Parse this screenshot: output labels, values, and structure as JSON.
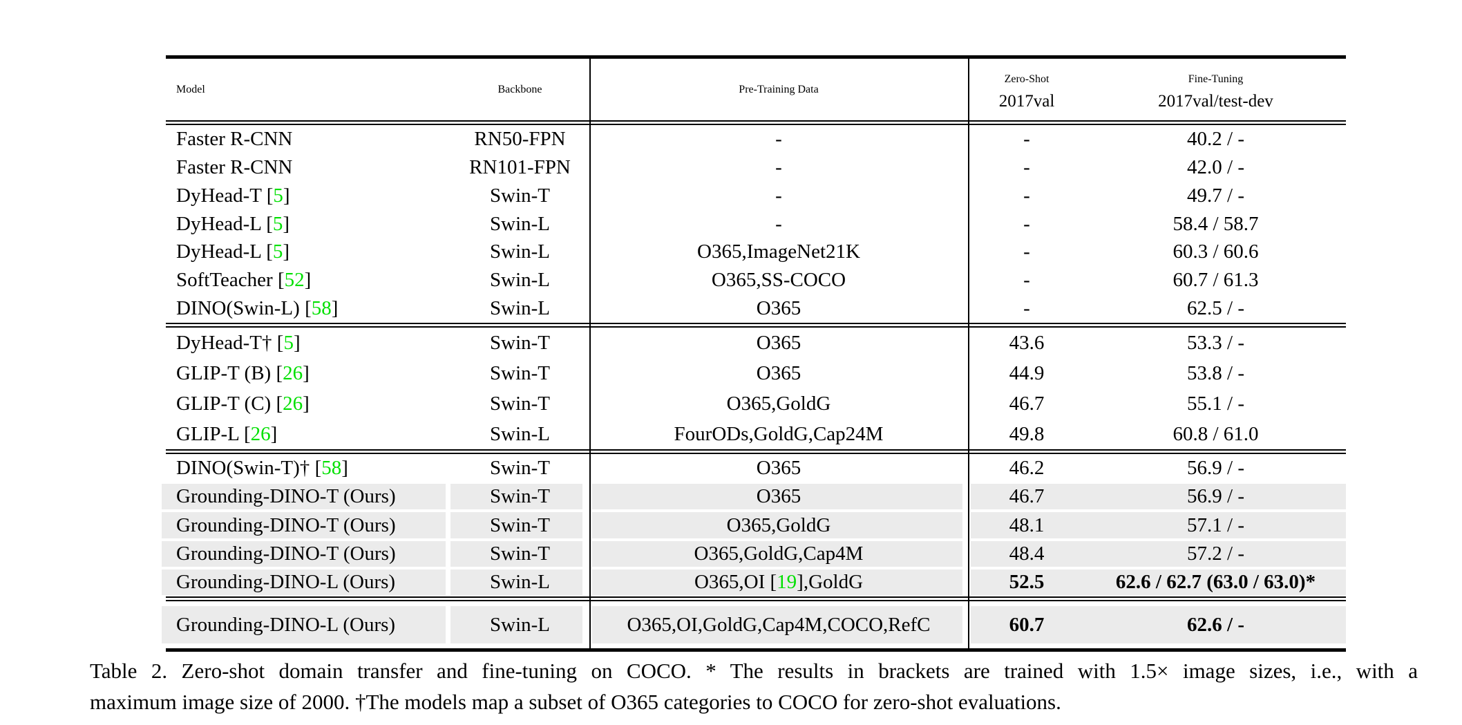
{
  "header": {
    "model": "Model",
    "backbone": "Backbone",
    "pretrain": "Pre-Training Data",
    "zeroshot_title": "Zero-Shot",
    "zeroshot_sub": "2017val",
    "finetune_title": "Fine-Tuning",
    "finetune_sub": "2017val/test-dev"
  },
  "colors": {
    "citation_green": "#00E000",
    "row_highlight": "#EBEBEB",
    "text": "#000000"
  },
  "groups": [
    {
      "rows": [
        {
          "model": "Faster R-CNN",
          "backbone": "RN50-FPN",
          "pretrain": "-",
          "zeroshot": "-",
          "finetune": "40.2 / -"
        },
        {
          "model": "Faster R-CNN",
          "backbone": "RN101-FPN",
          "pretrain": "-",
          "zeroshot": "-",
          "finetune": "42.0 / -"
        },
        {
          "model": "DyHead-T",
          "cite": "5",
          "backbone": "Swin-T",
          "pretrain": "-",
          "zeroshot": "-",
          "finetune": "49.7 / -"
        },
        {
          "model": "DyHead-L",
          "cite": "5",
          "backbone": "Swin-L",
          "pretrain": "-",
          "zeroshot": "-",
          "finetune": "58.4 / 58.7"
        },
        {
          "model": "DyHead-L",
          "cite": "5",
          "backbone": "Swin-L",
          "pretrain": "O365,ImageNet21K",
          "zeroshot": "-",
          "finetune": "60.3 / 60.6"
        },
        {
          "model": "SoftTeacher",
          "cite": "52",
          "backbone": "Swin-L",
          "pretrain": "O365,SS-COCO",
          "zeroshot": "-",
          "finetune": "60.7 / 61.3"
        },
        {
          "model": "DINO(Swin-L)",
          "cite": "58",
          "backbone": "Swin-L",
          "pretrain": "O365",
          "zeroshot": "-",
          "finetune": "62.5 / -"
        }
      ]
    },
    {
      "rows": [
        {
          "model": "DyHead-T†",
          "cite": "5",
          "backbone": "Swin-T",
          "pretrain": "O365",
          "zeroshot": "43.6",
          "finetune": "53.3 / -"
        },
        {
          "model": "GLIP-T (B)",
          "cite": "26",
          "backbone": "Swin-T",
          "pretrain": "O365",
          "zeroshot": "44.9",
          "finetune": "53.8 / -"
        },
        {
          "model": "GLIP-T (C)",
          "cite": "26",
          "backbone": "Swin-T",
          "pretrain": "O365,GoldG",
          "zeroshot": "46.7",
          "finetune": "55.1 / -"
        },
        {
          "model": "GLIP-L",
          "cite": "26",
          "backbone": "Swin-L",
          "pretrain": "FourODs,GoldG,Cap24M",
          "zeroshot": "49.8",
          "finetune": "60.8 / 61.0"
        }
      ]
    },
    {
      "rows": [
        {
          "model": "DINO(Swin-T)†",
          "cite": "58",
          "backbone": "Swin-T",
          "pretrain": "O365",
          "zeroshot": "46.2",
          "finetune": "56.9 / -"
        },
        {
          "model": "Grounding-DINO-T (Ours)",
          "backbone": "Swin-T",
          "pretrain": "O365",
          "zeroshot": "46.7",
          "finetune": "56.9 / -",
          "gray": true
        },
        {
          "model": "Grounding-DINO-T (Ours)",
          "backbone": "Swin-T",
          "pretrain": "O365,GoldG",
          "zeroshot": "48.1",
          "finetune": "57.1 / -",
          "gray": true
        },
        {
          "model": "Grounding-DINO-T (Ours)",
          "backbone": "Swin-T",
          "pretrain": "O365,GoldG,Cap4M",
          "zeroshot": "48.4",
          "finetune": "57.2 / -",
          "gray": true
        },
        {
          "model": "Grounding-DINO-L (Ours)",
          "backbone": "Swin-L",
          "pretrain": "O365,OI ",
          "pretrain_cite": "19",
          "pretrain_after": ",GoldG",
          "zeroshot": "52.5",
          "finetune": "62.6 / 62.7 (63.0 / 63.0)*",
          "gray": true,
          "bold": true
        }
      ]
    },
    {
      "rows": [
        {
          "model": "Grounding-DINO-L (Ours)",
          "backbone": "Swin-L",
          "pretrain": "O365,OI,GoldG,Cap4M,COCO,RefC",
          "zeroshot": "60.7",
          "finetune": "62.6 / -",
          "gray": true,
          "bold": true
        }
      ]
    }
  ],
  "caption": {
    "line1": "Table 2.  Zero-shot domain transfer and fine-tuning on COCO. * The results in brackets are trained with 1.5× image sizes, i.e., with a",
    "line2": "maximum image size of 2000. †The models map a subset of O365 categories to COCO for zero-shot evaluations."
  }
}
